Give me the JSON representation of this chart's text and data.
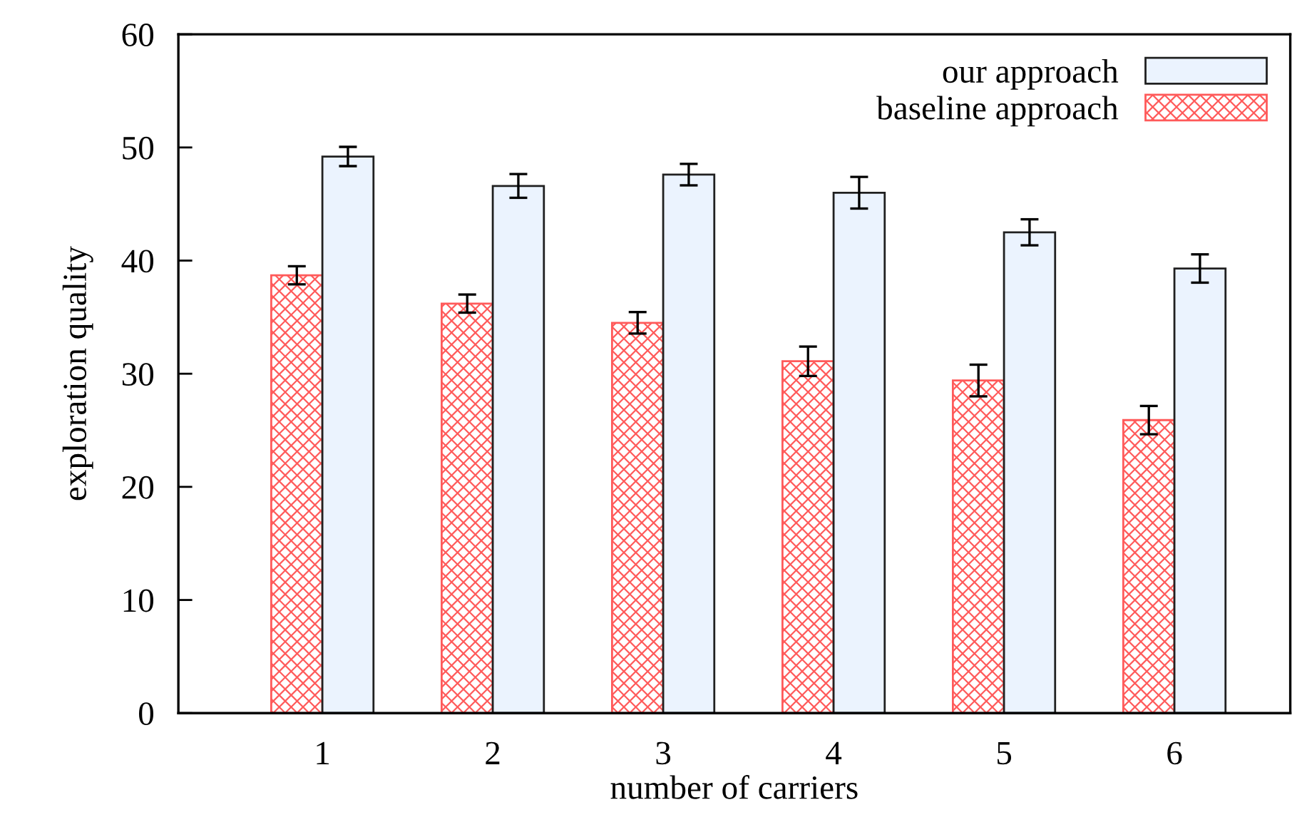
{
  "chart_data": {
    "type": "bar",
    "xlabel": "number of carriers",
    "ylabel": "exploration quality",
    "categories": [
      "1",
      "2",
      "3",
      "4",
      "5",
      "6"
    ],
    "series": [
      {
        "name": "baseline approach",
        "color": "#ff5a5a",
        "values": [
          38.7,
          36.2,
          34.5,
          31.1,
          29.4,
          25.9
        ],
        "errors": [
          0.8,
          0.8,
          0.95,
          1.3,
          1.4,
          1.25
        ]
      },
      {
        "name": "our approach",
        "color": "#ebf3fe",
        "values": [
          49.2,
          46.6,
          47.6,
          46.0,
          42.5,
          39.3
        ],
        "errors": [
          0.85,
          1.05,
          0.95,
          1.4,
          1.15,
          1.25
        ]
      }
    ],
    "ylim": [
      0,
      60
    ],
    "yticks": [
      0,
      10,
      20,
      30,
      40,
      50,
      60
    ],
    "grid": false,
    "legend": "top right"
  }
}
